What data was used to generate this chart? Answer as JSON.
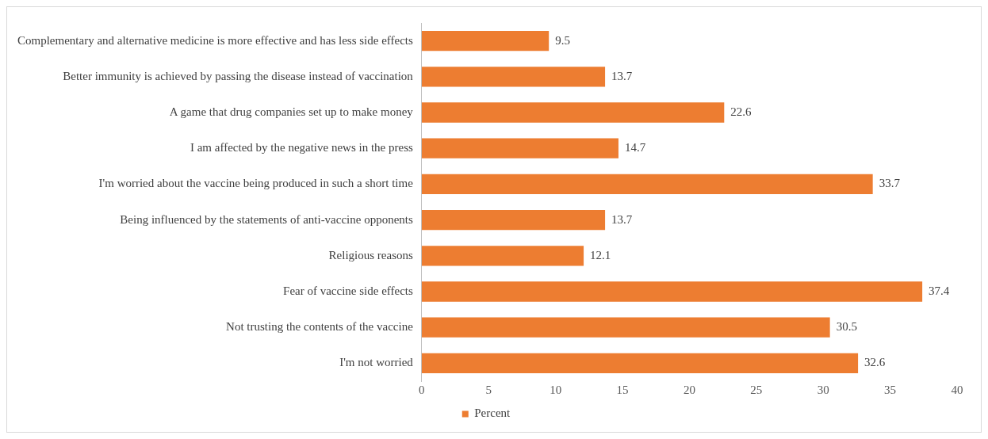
{
  "chart_data": {
    "type": "bar",
    "orientation": "horizontal",
    "categories": [
      "Complementary and alternative medicine is more effective and has less side effects",
      "Better immunity is achieved by passing the disease instead of vaccination",
      "A game that drug companies set up to make money",
      "I am affected by the negative news in the press",
      "I'm worried about the vaccine being produced in such a short time",
      "Being influenced by the statements of anti-vaccine opponents",
      "Religious reasons",
      "Fear of vaccine side effects",
      "Not trusting the contents of the vaccine",
      "I'm not worried"
    ],
    "series": [
      {
        "name": "Percent",
        "color": "#ed7d31",
        "values": [
          9.5,
          13.7,
          22.6,
          14.7,
          33.7,
          13.7,
          12.1,
          37.4,
          30.5,
          32.6
        ]
      }
    ],
    "xlim": [
      0,
      40
    ],
    "xticks": [
      0,
      5,
      10,
      15,
      20,
      25,
      30,
      35,
      40
    ],
    "grid": false,
    "legend": "bottom",
    "data_labels": true
  }
}
